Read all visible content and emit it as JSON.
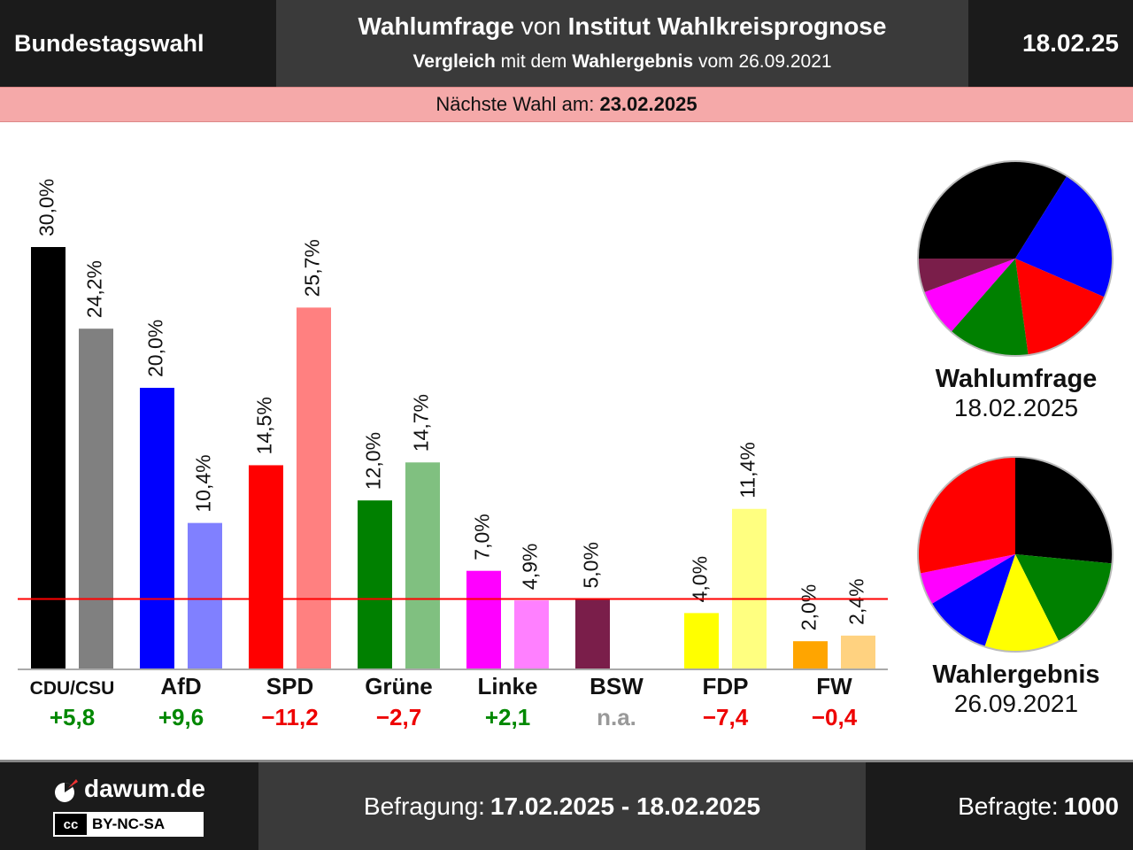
{
  "header": {
    "left_title": "Bundestagswahl",
    "main_title_a": "Wahlumfrage",
    "main_title_b": " von ",
    "main_title_c": "Institut Wahlkreisprognose",
    "sub_a": "Vergleich",
    "sub_b": " mit dem ",
    "sub_c": "Wahlergebnis",
    "sub_d": " vom 26.09.2021",
    "date": "18.02.25"
  },
  "next_election": {
    "label": "Nächste Wahl am: ",
    "date": "23.02.2025"
  },
  "pies": {
    "poll": {
      "title": "Wahlumfrage",
      "date": "18.02.2025"
    },
    "result": {
      "title": "Wahlergebnis",
      "date": "26.09.2021"
    }
  },
  "footer": {
    "logo": "dawum.de",
    "license": "BY-NC-SA",
    "license_icon": "cc",
    "survey_label": "Befragung: ",
    "survey_period": "17.02.2025 - 18.02.2025",
    "respondents_label": "Befragte: ",
    "respondents": "1000"
  },
  "chart_data": {
    "type": "bar",
    "threshold": 5.0,
    "ylim": [
      0,
      30
    ],
    "series": [
      {
        "name": "Wahlumfrage",
        "values": [
          30.0,
          20.0,
          14.5,
          12.0,
          7.0,
          5.0,
          4.0,
          2.0
        ]
      },
      {
        "name": "Wahlergebnis",
        "values": [
          24.2,
          10.4,
          25.7,
          14.7,
          4.9,
          null,
          11.4,
          2.4
        ]
      }
    ],
    "categories": [
      "CDU/CSU",
      "AfD",
      "SPD",
      "Grüne",
      "Linke",
      "BSW",
      "FDP",
      "FW"
    ],
    "value_labels_poll": [
      "30,0%",
      "20,0%",
      "14,5%",
      "12,0%",
      "7,0%",
      "5,0%",
      "4,0%",
      "2,0%"
    ],
    "value_labels_result": [
      "24,2%",
      "10,4%",
      "25,7%",
      "14,7%",
      "4,9%",
      "",
      "11,4%",
      "2,4%"
    ],
    "differences": [
      "+5,8",
      "+9,6",
      "−11,2",
      "−2,7",
      "+2,1",
      "n.a.",
      "−7,4",
      "−0,4"
    ],
    "difference_colors": [
      "#008800",
      "#008800",
      "#ee0000",
      "#ee0000",
      "#008800",
      "#999999",
      "#ee0000",
      "#ee0000"
    ],
    "colors_poll": [
      "#000000",
      "#0000ff",
      "#ff0000",
      "#008000",
      "#ff00ff",
      "#7a1e4a",
      "#ffff00",
      "#ffa500"
    ],
    "colors_result": [
      "#808080",
      "#8080ff",
      "#ff8080",
      "#80c080",
      "#ff80ff",
      "#bc8ea4",
      "#ffff80",
      "#ffd280"
    ],
    "pie_poll_order": [
      "CDU/CSU",
      "AfD",
      "SPD",
      "Grüne",
      "Linke",
      "BSW"
    ],
    "pie_result_order": [
      "CDU/CSU",
      "Grüne",
      "FDP",
      "AfD",
      "Linke",
      "SPD"
    ]
  }
}
